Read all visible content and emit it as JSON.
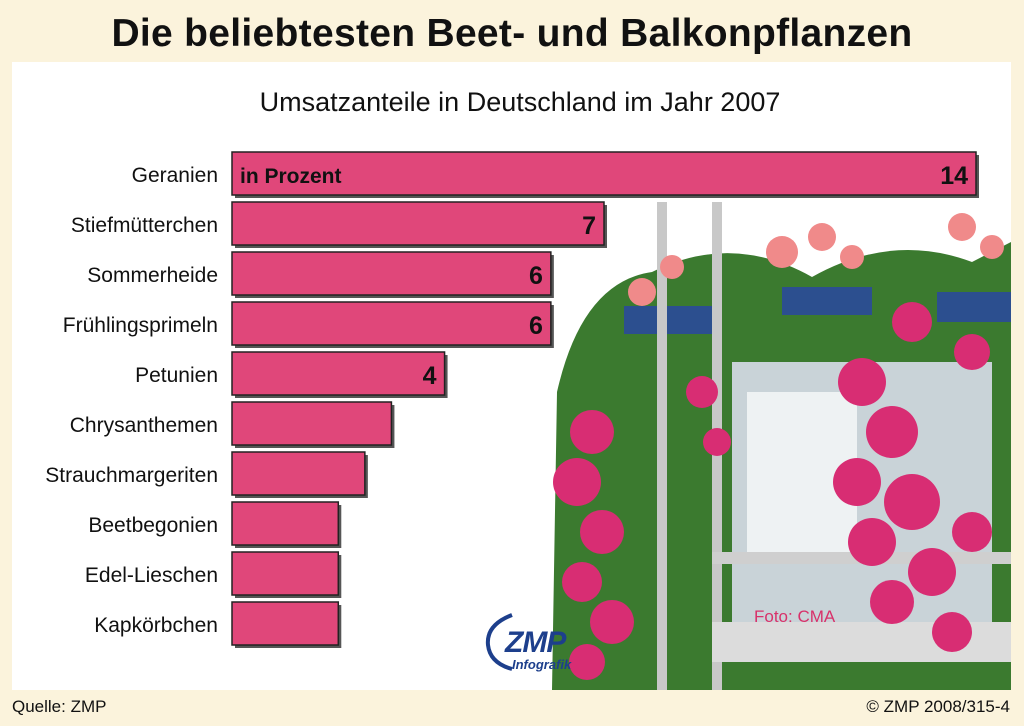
{
  "title": "Die beliebtesten Beet- und Balkonpflanzen",
  "subtitle": "Umsatzanteile in Deutschland im Jahr 2007",
  "unit_label": "in Prozent",
  "footer": {
    "source": "Quelle: ZMP",
    "copyright": "© ZMP 2008/315-4"
  },
  "photo_credit": "Foto: CMA",
  "logo": {
    "name": "ZMP",
    "sub": "Infografik"
  },
  "colors": {
    "bar": "#e0477a",
    "bar_border": "#222222",
    "background": "#fbf3dc"
  },
  "chart_data": {
    "type": "bar",
    "orientation": "horizontal",
    "title": "Die beliebtesten Beet- und Balkonpflanzen",
    "subtitle": "Umsatzanteile in Deutschland im Jahr 2007",
    "categories": [
      "Geranien",
      "Stiefmütterchen",
      "Sommerheide",
      "Frühlingsprimeln",
      "Petunien",
      "Chrysanthemen",
      "Strauchmargeriten",
      "Beetbegonien",
      "Edel-Lieschen",
      "Kapkörbchen"
    ],
    "values": [
      14,
      7,
      6,
      6,
      4,
      3,
      2.5,
      2,
      2,
      2
    ],
    "labels": [
      "14",
      "7",
      "6",
      "6",
      "4",
      "",
      "",
      "",
      "",
      ""
    ],
    "xlim": [
      0,
      14
    ],
    "grid": false,
    "legend": "none"
  }
}
